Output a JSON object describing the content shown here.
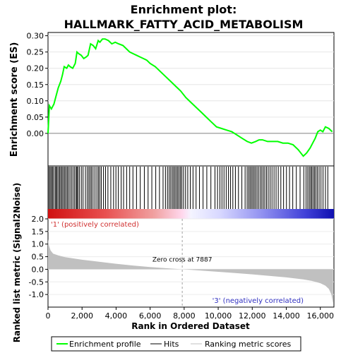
{
  "chart_data": {
    "type": "line",
    "title": "Enrichment plot:\nHALLMARK_FATTY_ACID_METABOLISM",
    "title_lines": [
      "Enrichment plot:",
      "HALLMARK_FATTY_ACID_METABOLISM"
    ],
    "xlabel": "Rank in Ordered Dataset",
    "xlim": [
      0,
      16800
    ],
    "x_ticks": [
      0,
      2000,
      4000,
      6000,
      8000,
      10000,
      12000,
      14000,
      16000
    ],
    "x_tick_labels": [
      "0",
      "2,000",
      "4,000",
      "6,000",
      "8,000",
      "10,000",
      "12,000",
      "14,000",
      "16,000"
    ],
    "es_panel": {
      "ylabel": "Enrichment score (ES)",
      "ylim": [
        -0.1,
        0.31
      ],
      "y_ticks": [
        0.0,
        0.05,
        0.1,
        0.15,
        0.2,
        0.25,
        0.3
      ],
      "y_tick_labels": [
        "0.00",
        "0.05",
        "0.10",
        "0.15",
        "0.20",
        "0.25",
        "0.30"
      ],
      "series_name": "Enrichment profile",
      "color": "#00ff00",
      "x": [
        0,
        80,
        200,
        350,
        450,
        600,
        750,
        850,
        950,
        1100,
        1200,
        1300,
        1450,
        1600,
        1700,
        1800,
        1950,
        2100,
        2250,
        2350,
        2500,
        2650,
        2800,
        2950,
        3050,
        3200,
        3350,
        3550,
        3750,
        3950,
        4150,
        4400,
        4600,
        4800,
        5000,
        5200,
        5400,
        5600,
        5800,
        6000,
        6300,
        6600,
        6900,
        7200,
        7500,
        7800,
        8100,
        8400,
        8700,
        9000,
        9300,
        9600,
        9900,
        10200,
        10500,
        10800,
        11100,
        11400,
        11700,
        11950,
        12200,
        12400,
        12600,
        12900,
        13200,
        13500,
        13800,
        14100,
        14400,
        14700,
        15000,
        15200,
        15400,
        15550,
        15700,
        15850,
        16000,
        16150,
        16300,
        16500,
        16700
      ],
      "y": [
        0.0,
        0.085,
        0.075,
        0.09,
        0.11,
        0.14,
        0.16,
        0.18,
        0.205,
        0.2,
        0.21,
        0.205,
        0.2,
        0.215,
        0.25,
        0.245,
        0.24,
        0.23,
        0.235,
        0.24,
        0.275,
        0.27,
        0.26,
        0.285,
        0.28,
        0.29,
        0.29,
        0.285,
        0.275,
        0.28,
        0.275,
        0.27,
        0.26,
        0.25,
        0.245,
        0.24,
        0.235,
        0.23,
        0.225,
        0.215,
        0.205,
        0.19,
        0.175,
        0.16,
        0.145,
        0.13,
        0.11,
        0.095,
        0.08,
        0.065,
        0.05,
        0.035,
        0.02,
        0.015,
        0.01,
        0.005,
        -0.005,
        -0.015,
        -0.025,
        -0.03,
        -0.025,
        -0.02,
        -0.02,
        -0.025,
        -0.025,
        -0.025,
        -0.03,
        -0.03,
        -0.035,
        -0.05,
        -0.07,
        -0.06,
        -0.045,
        -0.03,
        -0.015,
        0.005,
        0.01,
        0.005,
        0.02,
        0.015,
        0.005
      ]
    },
    "hits_panel": {
      "hits_label": "Hits",
      "hit_positions": [
        60,
        130,
        200,
        260,
        330,
        420,
        480,
        540,
        620,
        690,
        760,
        830,
        900,
        980,
        1050,
        1130,
        1200,
        1290,
        1380,
        1470,
        1560,
        1650,
        1700,
        1760,
        1850,
        1960,
        2060,
        2200,
        2310,
        2400,
        2480,
        2560,
        2650,
        2760,
        2870,
        2960,
        3040,
        3130,
        3260,
        3380,
        3520,
        3690,
        3850,
        3990,
        4130,
        4300,
        4440,
        4620,
        4800,
        4990,
        5200,
        5420,
        5660,
        5880,
        6100,
        6330,
        6550,
        6760,
        6900,
        7020,
        7120,
        7210,
        7300,
        7380,
        7460,
        7540,
        7620,
        7700,
        7780,
        7860,
        7960,
        8080,
        8210,
        8360,
        8520,
        8700,
        8900,
        9110,
        9330,
        9570,
        9810,
        9960,
        10100,
        10220,
        10340,
        10470,
        10600,
        10720,
        10860,
        11010,
        11190,
        11390,
        11580,
        11700,
        11790,
        11870,
        11950,
        12030,
        12110,
        12190,
        12280,
        12370,
        12470,
        12560,
        12650,
        12740,
        12840,
        12940,
        13050,
        13160,
        13280,
        13400,
        13530,
        13680,
        13840,
        14010,
        14190,
        14380,
        14590,
        14810,
        15030,
        15160,
        15260,
        15350,
        15430,
        15500,
        15580,
        15660,
        15740,
        15830,
        15930,
        16040,
        16160,
        16300,
        16440
      ]
    },
    "rank_panel": {
      "ylabel": "Ranked list metric (Signal2Noise)",
      "ylim": [
        -1.5,
        2.0
      ],
      "y_ticks": [
        -1.0,
        -0.5,
        0.0,
        0.5,
        1.0,
        1.5,
        2.0
      ],
      "y_tick_labels": [
        "-1.0",
        "-0.5",
        "0.0",
        "0.5",
        "1.0",
        "1.5",
        "2.0"
      ],
      "series_name": "Ranking metric scores",
      "color": "#c0c0c0",
      "x": [
        0,
        50,
        150,
        300,
        600,
        1000,
        2000,
        3000,
        4000,
        5000,
        6000,
        7000,
        7887,
        9000,
        10000,
        11000,
        12000,
        13000,
        14000,
        15000,
        15500,
        16000,
        16300,
        16500,
        16650,
        16750
      ],
      "y": [
        1.2,
        0.95,
        0.75,
        0.62,
        0.55,
        0.48,
        0.38,
        0.3,
        0.22,
        0.15,
        0.09,
        0.04,
        0.0,
        -0.05,
        -0.1,
        -0.15,
        -0.2,
        -0.26,
        -0.32,
        -0.4,
        -0.46,
        -0.55,
        -0.65,
        -0.78,
        -1.0,
        -1.35
      ],
      "zero_cross_label": "Zero cross at 7887",
      "zero_cross": 7887,
      "pos_label": "'1' (positively correlated)",
      "neg_label": "'3' (negatively correlated)"
    },
    "legend": {
      "placement": "bottom",
      "items": [
        "Enrichment profile",
        "Hits",
        "Ranking metric scores"
      ]
    }
  },
  "colors": {
    "es_line": "#00ff00",
    "hit_line": "#000000",
    "metric_fill": "#c0c0c0",
    "pos_label": "#d03030",
    "neg_label": "#3030c0",
    "zero_line": "#a0a0a0"
  }
}
